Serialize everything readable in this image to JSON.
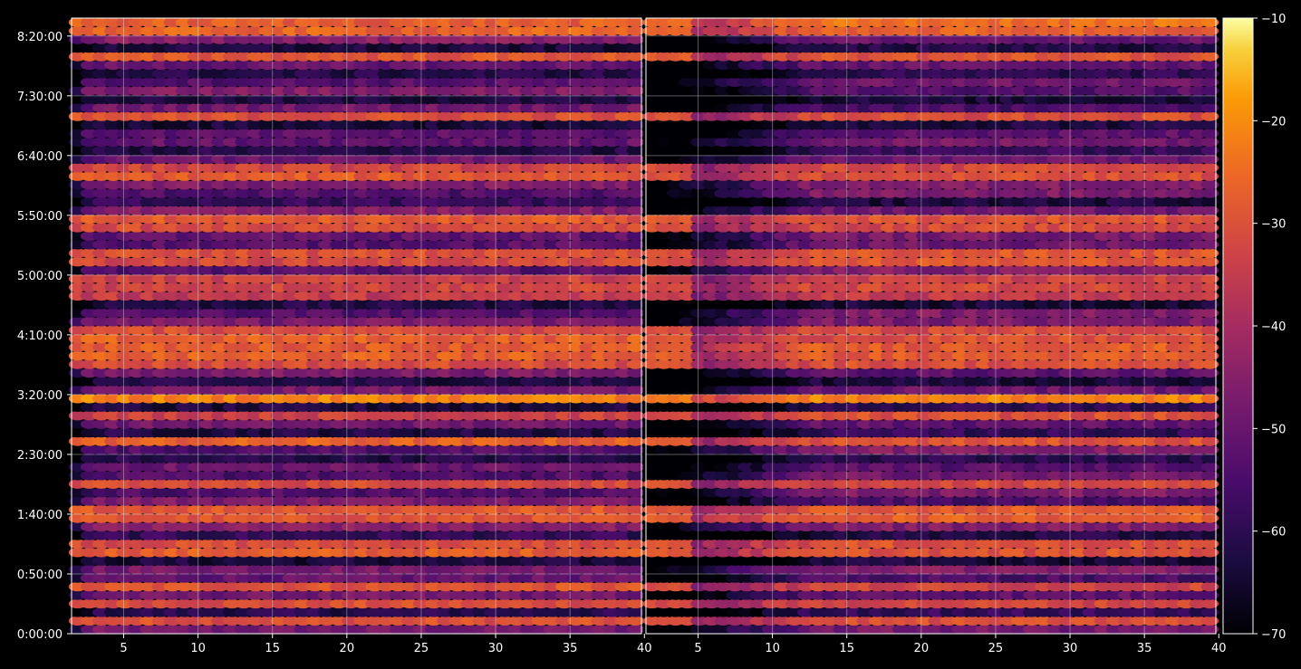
{
  "chart_data": {
    "type": "heatmap",
    "title": "",
    "colormap": "inferno",
    "background": "#000000",
    "grid": true,
    "panels": [
      {
        "name": "",
        "x_range": [
          1.5,
          39.8
        ],
        "x_ticks": [
          5,
          10,
          15,
          20,
          25,
          30,
          35
        ],
        "x_tick_labels": [
          "5",
          "10",
          "15",
          "20",
          "25",
          "30",
          "35"
        ],
        "weaker_low_x_until": 3
      },
      {
        "name": "",
        "x_range": [
          1.5,
          39.8
        ],
        "x_ticks": [
          5,
          10,
          15,
          20,
          25,
          30,
          35
        ],
        "x_tick_labels": [
          "5",
          "10",
          "15",
          "20",
          "25",
          "30",
          "35"
        ],
        "weaker_low_x_until": 13
      }
    ],
    "shared_x_edge_labels": [
      "40",
      "40"
    ],
    "y_axis": {
      "unit": "h:mm:ss",
      "range_seconds": [
        0,
        30900
      ],
      "ticks_seconds": [
        0,
        3000,
        6000,
        9000,
        12000,
        15000,
        18000,
        21000,
        24000,
        27000,
        30000
      ],
      "tick_labels": [
        "0:00:00",
        "0:50:00",
        "1:40:00",
        "2:30:00",
        "3:20:00",
        "4:10:00",
        "5:00:00",
        "5:50:00",
        "6:40:00",
        "7:30:00",
        "8:20:00"
      ]
    },
    "colorbar": {
      "range": [
        -70,
        -10
      ],
      "ticks": [
        -70,
        -60,
        -50,
        -40,
        -30,
        -20,
        -10
      ],
      "tick_labels": [
        "−70",
        "−60",
        "−50",
        "−40",
        "−30",
        "−20",
        "−10"
      ]
    },
    "hot_rows_seconds": [
      {
        "t": 30500,
        "v": -26
      },
      {
        "t": 29000,
        "v": -28
      },
      {
        "t": 26100,
        "v": -30
      },
      {
        "t": 23500,
        "v": -31
      },
      {
        "t": 23000,
        "v": -30
      },
      {
        "t": 20800,
        "v": -28
      },
      {
        "t": 20400,
        "v": -30
      },
      {
        "t": 18900,
        "v": -31
      },
      {
        "t": 17600,
        "v": -32
      },
      {
        "t": 17000,
        "v": -34
      },
      {
        "t": 15400,
        "v": -30
      },
      {
        "t": 14600,
        "v": -29
      },
      {
        "t": 13900,
        "v": -27
      },
      {
        "t": 13400,
        "v": -30
      },
      {
        "t": 11800,
        "v": -22
      },
      {
        "t": 10800,
        "v": -32
      },
      {
        "t": 9700,
        "v": -28
      },
      {
        "t": 7400,
        "v": -30
      },
      {
        "t": 6200,
        "v": -29
      },
      {
        "t": 5700,
        "v": -28
      },
      {
        "t": 4300,
        "v": -29
      },
      {
        "t": 2200,
        "v": -31
      },
      {
        "t": 1400,
        "v": -32
      },
      {
        "t": 500,
        "v": -31
      }
    ]
  }
}
